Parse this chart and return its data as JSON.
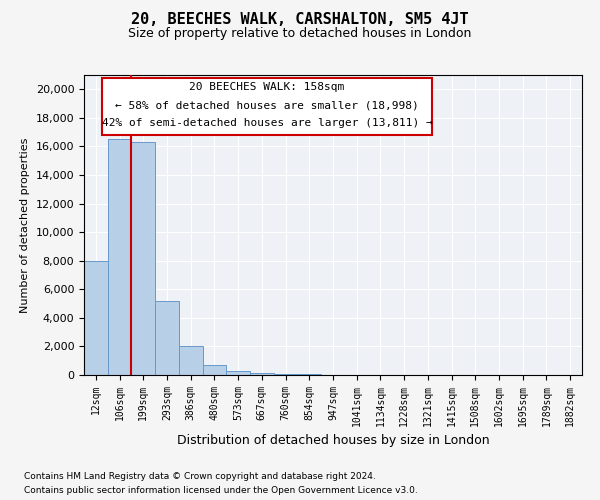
{
  "title": "20, BEECHES WALK, CARSHALTON, SM5 4JT",
  "subtitle": "Size of property relative to detached houses in London",
  "xlabel": "Distribution of detached houses by size in London",
  "ylabel": "Number of detached properties",
  "footnote1": "Contains HM Land Registry data © Crown copyright and database right 2024.",
  "footnote2": "Contains public sector information licensed under the Open Government Licence v3.0.",
  "annotation_line1": "20 BEECHES WALK: 158sqm",
  "annotation_line2": "← 58% of detached houses are smaller (18,998)",
  "annotation_line3": "42% of semi-detached houses are larger (13,811) →",
  "bar_color": "#b8cfe8",
  "bar_edge_color": "#6699cc",
  "vline_color": "#cc0000",
  "vline_x": 1.5,
  "bins": [
    "12sqm",
    "106sqm",
    "199sqm",
    "293sqm",
    "386sqm",
    "480sqm",
    "573sqm",
    "667sqm",
    "760sqm",
    "854sqm",
    "947sqm",
    "1041sqm",
    "1134sqm",
    "1228sqm",
    "1321sqm",
    "1415sqm",
    "1508sqm",
    "1602sqm",
    "1695sqm",
    "1789sqm",
    "1882sqm"
  ],
  "values": [
    8000,
    16500,
    16300,
    5200,
    2000,
    700,
    250,
    150,
    100,
    50,
    30,
    20,
    10,
    5,
    0,
    0,
    0,
    0,
    0,
    0,
    0
  ],
  "ylim": [
    0,
    21000
  ],
  "yticks": [
    0,
    2000,
    4000,
    6000,
    8000,
    10000,
    12000,
    14000,
    16000,
    18000,
    20000
  ],
  "background_color": "#eef2f7",
  "grid_color": "#ffffff",
  "annotation_box_edge": "#cc0000"
}
